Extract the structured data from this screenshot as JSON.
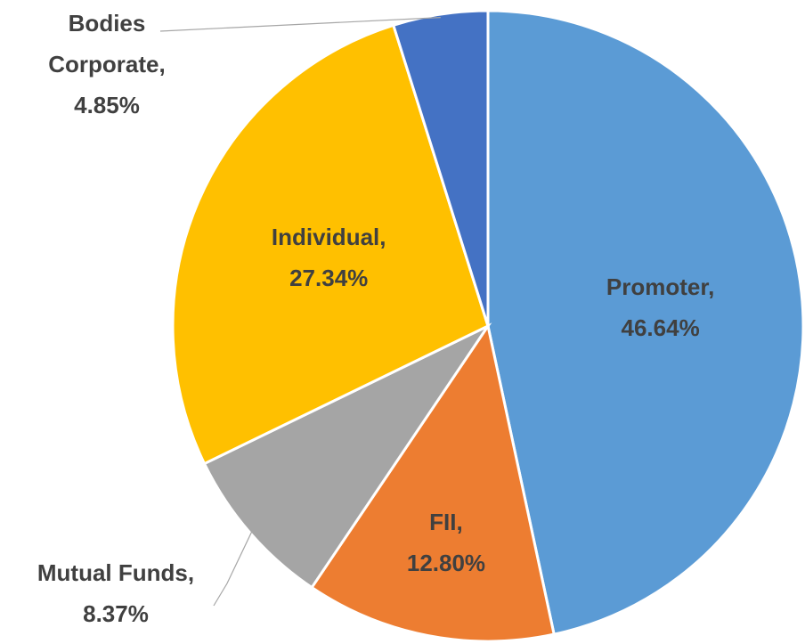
{
  "chart_data": {
    "type": "pie",
    "categories": [
      "Promoter",
      "FII",
      "Mutual Funds",
      "Individual",
      "Bodies Corporate"
    ],
    "values": [
      46.64,
      12.8,
      8.37,
      27.34,
      4.85
    ],
    "value_labels": [
      "46.64%",
      "12.80%",
      "8.37%",
      "27.34%",
      "4.85%"
    ],
    "label_separator": ",",
    "colors": [
      "#5b9bd5",
      "#ed7d31",
      "#a5a5a5",
      "#ffc000",
      "#4472c4"
    ]
  }
}
